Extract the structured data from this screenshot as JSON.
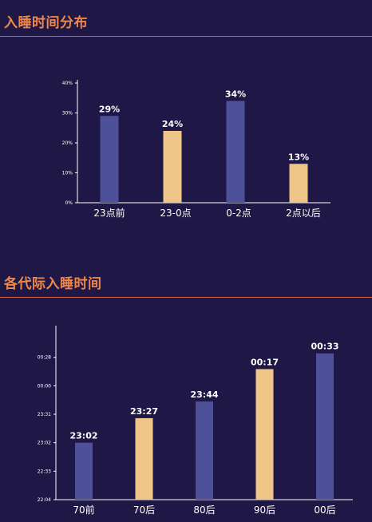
{
  "sections": {
    "bedtime_distribution_title": "入睡时间分布",
    "generation_title": "各代际入睡时间"
  },
  "colors": {
    "background": "#1f1846",
    "accent": "#f0874a",
    "bar_purple": "#4f509a",
    "bar_gold": "#f0c688"
  },
  "chart_data": [
    {
      "type": "bar",
      "title": "入睡时间分布",
      "categories": [
        "23点前",
        "23-0点",
        "0-2点",
        "2点以后"
      ],
      "values": [
        29,
        24,
        34,
        13
      ],
      "value_labels": [
        "29%",
        "24%",
        "34%",
        "13%"
      ],
      "bar_colors": [
        "#4f509a",
        "#f0c688",
        "#4f509a",
        "#f0c688"
      ],
      "ylim": [
        0,
        40
      ],
      "yticks": [
        0,
        10,
        20,
        30,
        40
      ],
      "ytick_labels": [
        "0%",
        "10%",
        "20%",
        "30%",
        "40%"
      ],
      "xlabel": "",
      "ylabel": "",
      "grid": false
    },
    {
      "type": "bar",
      "title": "各代际入睡时间",
      "categories": [
        "70前",
        "70后",
        "80后",
        "90后",
        "00后"
      ],
      "values": [
        23.0333,
        23.45,
        23.7333,
        24.2833,
        24.55
      ],
      "value_labels": [
        "23:02",
        "23:27",
        "23:44",
        "00:17",
        "00:33"
      ],
      "bar_colors": [
        "#4f509a",
        "#f0c688",
        "#4f509a",
        "#f0c688",
        "#4f509a"
      ],
      "ylim": [
        22.0667,
        24.9667
      ],
      "yticks": [
        22.0667,
        22.55,
        23.0333,
        23.5167,
        24.0,
        24.4833
      ],
      "ytick_labels": [
        "22:04",
        "22:33",
        "23:02",
        "23:31",
        "00:00",
        "00:28"
      ],
      "xlabel": "",
      "ylabel": "",
      "grid": false
    }
  ]
}
